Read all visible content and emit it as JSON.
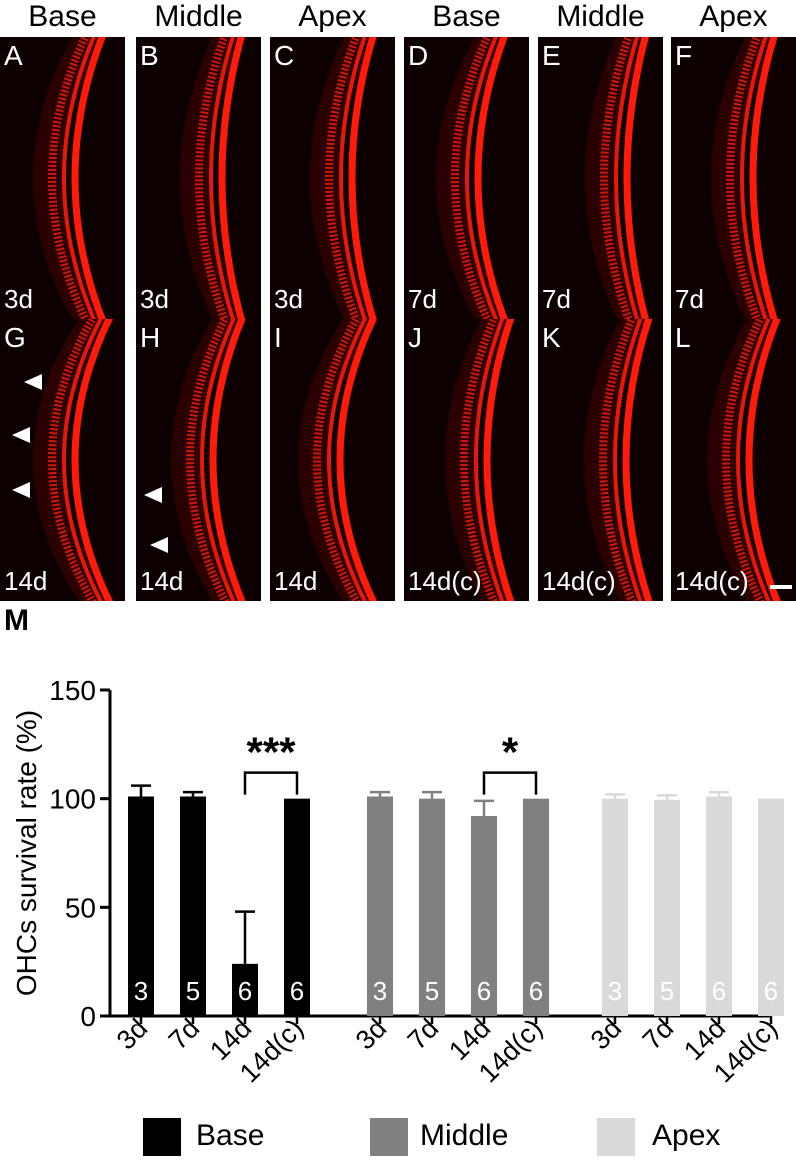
{
  "column_headers": [
    "Base",
    "Middle",
    "Apex",
    "Base",
    "Middle",
    "Apex"
  ],
  "panels": [
    {
      "label": "A",
      "day": "3d"
    },
    {
      "label": "B",
      "day": "3d"
    },
    {
      "label": "C",
      "day": "3d"
    },
    {
      "label": "D",
      "day": "7d"
    },
    {
      "label": "E",
      "day": "7d"
    },
    {
      "label": "F",
      "day": "7d"
    },
    {
      "label": "G",
      "day": "14d"
    },
    {
      "label": "H",
      "day": "14d"
    },
    {
      "label": "I",
      "day": "14d"
    },
    {
      "label": "J",
      "day": "14d(c)"
    },
    {
      "label": "K",
      "day": "14d(c)"
    },
    {
      "label": "L",
      "day": "14d(c)"
    }
  ],
  "chart_label": "M",
  "chart_data": {
    "type": "bar",
    "ylabel": "OHCs survival rate (%)",
    "ylim": [
      0,
      150
    ],
    "yticks": [
      0,
      50,
      100,
      150
    ],
    "categories": [
      "3d",
      "7d",
      "14d",
      "14d(c)"
    ],
    "series": [
      {
        "name": "Base",
        "color": "#000000",
        "values": [
          101,
          101,
          24,
          100
        ],
        "errors": [
          5,
          2,
          24,
          0
        ],
        "n": [
          "3",
          "5",
          "6",
          "6"
        ]
      },
      {
        "name": "Middle",
        "color": "#808080",
        "values": [
          101,
          100,
          92,
          100
        ],
        "errors": [
          2,
          3,
          7,
          0
        ],
        "n": [
          "3",
          "5",
          "6",
          "6"
        ]
      },
      {
        "name": "Apex",
        "color": "#d9d9d9",
        "values": [
          100,
          99.5,
          101,
          100
        ],
        "errors": [
          2,
          2,
          2,
          0
        ],
        "n": [
          "3",
          "5",
          "6",
          "6"
        ]
      }
    ],
    "significance": [
      {
        "series": "Base",
        "from": "14d",
        "to": "14d(c)",
        "label": "***"
      },
      {
        "series": "Middle",
        "from": "14d",
        "to": "14d(c)",
        "label": "*"
      }
    ],
    "legend_position": "bottom"
  },
  "colors": {
    "stain": "#ff1a0a",
    "panel_background": "#0d0000"
  }
}
